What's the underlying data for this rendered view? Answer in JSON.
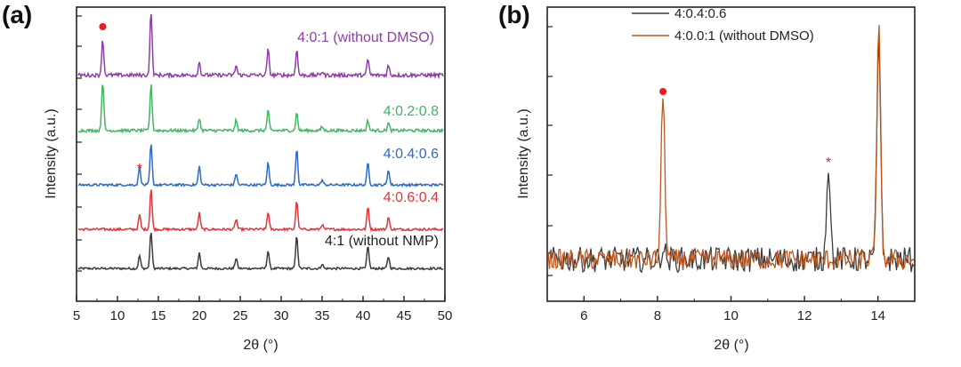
{
  "chart_data": [
    {
      "panel": "(a)",
      "type": "line",
      "xlabel": "2θ (°)",
      "ylabel": "Intensity (a.u.)",
      "xlim": [
        5,
        50
      ],
      "xticks": [
        5,
        10,
        15,
        20,
        25,
        30,
        35,
        40,
        45,
        50
      ],
      "grid": false,
      "series": [
        {
          "name": "4:1 (without NMP)",
          "color": "#3c3c3c",
          "peaks": [
            [
              12.7,
              0.35
            ],
            [
              14.1,
              1.0
            ],
            [
              20.0,
              0.42
            ],
            [
              24.5,
              0.28
            ],
            [
              28.4,
              0.48
            ],
            [
              31.9,
              0.88
            ],
            [
              35.0,
              0.12
            ],
            [
              40.6,
              0.6
            ],
            [
              43.1,
              0.32
            ]
          ]
        },
        {
          "name": "4:0.6:0.4",
          "color": "#e2353c",
          "peaks": [
            [
              12.7,
              0.35
            ],
            [
              14.1,
              1.0
            ],
            [
              20.0,
              0.4
            ],
            [
              24.5,
              0.25
            ],
            [
              28.4,
              0.42
            ],
            [
              31.9,
              0.7
            ],
            [
              35.0,
              0.12
            ],
            [
              40.6,
              0.55
            ],
            [
              43.1,
              0.3
            ]
          ]
        },
        {
          "name": "4:0.4:0.6",
          "color": "#2d6bc4",
          "peaks": [
            [
              12.7,
              0.45
            ],
            [
              14.1,
              1.0
            ],
            [
              20.0,
              0.45
            ],
            [
              24.5,
              0.28
            ],
            [
              28.4,
              0.55
            ],
            [
              31.9,
              0.9
            ],
            [
              35.0,
              0.12
            ],
            [
              40.6,
              0.55
            ],
            [
              43.1,
              0.38
            ]
          ]
        },
        {
          "name": "4:0.2:0.8",
          "color": "#43b662",
          "peaks": [
            [
              8.2,
              1.0
            ],
            [
              14.1,
              0.92
            ],
            [
              20.0,
              0.25
            ],
            [
              24.5,
              0.2
            ],
            [
              28.4,
              0.4
            ],
            [
              31.9,
              0.35
            ],
            [
              35.0,
              0.08
            ],
            [
              40.6,
              0.2
            ],
            [
              43.1,
              0.15
            ]
          ]
        },
        {
          "name": "4:0:1 (without DMSO)",
          "color": "#8e3fa6",
          "peaks": [
            [
              8.2,
              0.55
            ],
            [
              14.1,
              1.0
            ],
            [
              20.0,
              0.2
            ],
            [
              24.5,
              0.15
            ],
            [
              28.4,
              0.4
            ],
            [
              31.9,
              0.4
            ],
            [
              35.0,
              0.06
            ],
            [
              40.6,
              0.25
            ],
            [
              43.1,
              0.15
            ]
          ]
        }
      ],
      "annotations": [
        {
          "symbol": "●",
          "x": 8.2,
          "color": "#e31e24",
          "series": "4:0:1 (without DMSO)"
        },
        {
          "symbol": "*",
          "x": 12.7,
          "color": "#e31e24",
          "series": "4:0.4:0.6"
        }
      ]
    },
    {
      "panel": "(b)",
      "type": "line",
      "xlabel": "2θ (°)",
      "ylabel": "Intensity (a.u.)",
      "xlim": [
        5,
        15
      ],
      "xticks": [
        6,
        8,
        10,
        12,
        14
      ],
      "grid": false,
      "legend_position": "top-left",
      "series": [
        {
          "name": "4:0.4:0.6",
          "color": "#3c3c3c",
          "peaks": [
            [
              8.15,
              0.05
            ],
            [
              12.65,
              0.42
            ],
            [
              14.02,
              0.95
            ]
          ]
        },
        {
          "name": "4:0.0:1 (without DMSO)",
          "color": "#c0561c",
          "peaks": [
            [
              8.15,
              0.72
            ],
            [
              14.02,
              1.0
            ]
          ]
        }
      ],
      "annotations": [
        {
          "symbol": "●",
          "x": 8.15,
          "color": "#e31e24"
        },
        {
          "symbol": "*",
          "x": 12.65,
          "color": "#e31e24"
        }
      ]
    }
  ]
}
